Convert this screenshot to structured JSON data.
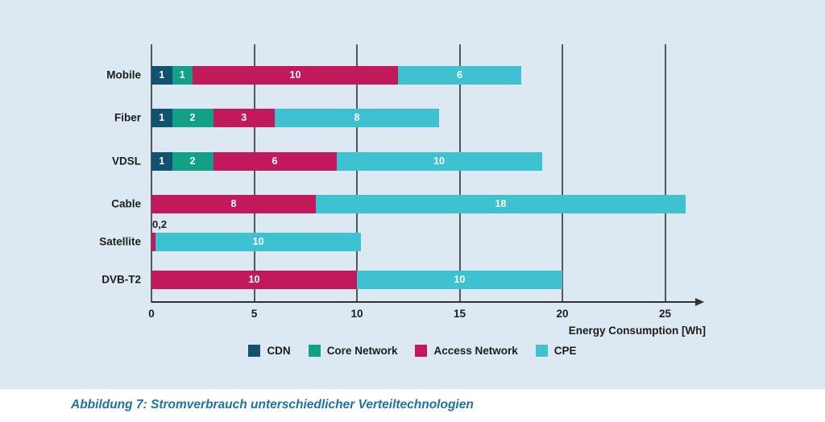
{
  "chart_data": {
    "type": "bar",
    "orientation": "horizontal",
    "stacked": true,
    "title": "",
    "categories": [
      "Mobile",
      "Fiber",
      "VDSL",
      "Cable",
      "Satellite",
      "DVB-T2"
    ],
    "series": [
      {
        "name": "CDN",
        "color": "#115271",
        "values": [
          1,
          1,
          1,
          0,
          0,
          0
        ]
      },
      {
        "name": "Core Network",
        "color": "#12a086",
        "values": [
          1,
          2,
          2,
          0,
          0,
          0
        ]
      },
      {
        "name": "Access Network",
        "color": "#c1195b",
        "values": [
          10,
          3,
          6,
          8,
          0.2,
          10
        ]
      },
      {
        "name": "CPE",
        "color": "#3ec2d2",
        "values": [
          6,
          8,
          10,
          18,
          10,
          10
        ]
      }
    ],
    "totals": [
      18,
      14,
      19,
      26,
      10.2,
      20
    ],
    "xlabel": "Energy Consumption [Wh]",
    "xticks": [
      0,
      5,
      10,
      15,
      20,
      25
    ],
    "xlim": [
      0,
      26.9
    ],
    "grid": "vertical",
    "legend_position": "bottom",
    "legend": [
      "CDN",
      "Core Network",
      "Access Network",
      "CPE"
    ],
    "value_label_format": "decimal-comma",
    "outside_label": "0,2"
  },
  "caption": "Abbildung 7: Stromverbrauch unterschiedlicher Verteiltechnologien",
  "colors": {
    "panel_background": "#dce9f2",
    "page_background": "#ffffff",
    "gridline": "#57575a",
    "axis": "#333332",
    "text": "#1d1d1b",
    "bar_value_text": "#ffffff",
    "caption_text": "#1f72a4"
  }
}
